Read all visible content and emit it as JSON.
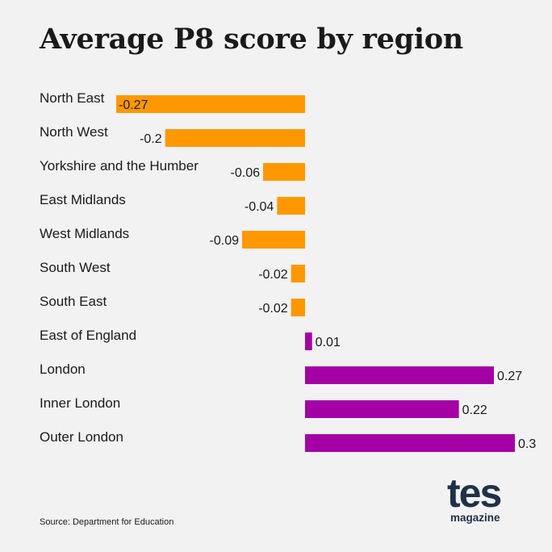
{
  "chart_data": {
    "type": "bar",
    "orientation": "horizontal",
    "title": "Average P8 score by region",
    "categories": [
      "North East",
      "North West",
      "Yorkshire and the Humber",
      "East Midlands",
      "West Midlands",
      "South West",
      "South East",
      "East of England",
      "London",
      "Inner London",
      "Outer London"
    ],
    "values": [
      -0.27,
      -0.2,
      -0.06,
      -0.04,
      -0.09,
      -0.02,
      -0.02,
      0.01,
      0.27,
      0.22,
      0.3
    ],
    "value_labels": [
      "-0.27",
      "-0.2",
      "-0.06",
      "-0.04",
      "-0.09",
      "-0.02",
      "-0.02",
      "0.01",
      "0.27",
      "0.22",
      "0.3"
    ],
    "xlim": [
      -0.27,
      0.3
    ],
    "grid": false,
    "colors": {
      "negative": "#ff9800",
      "positive": "#a400a6"
    }
  },
  "source": "Source: Department for Education",
  "logo": {
    "main": "tes",
    "sub": "magazine"
  }
}
